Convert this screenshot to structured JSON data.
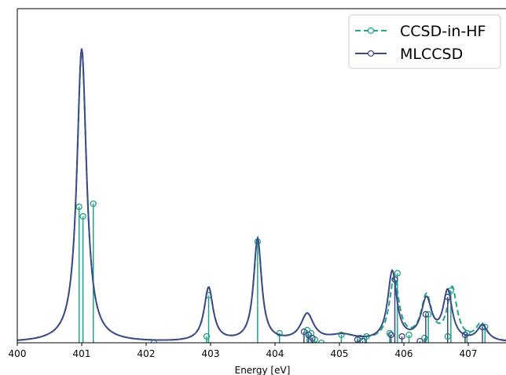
{
  "chart_data": {
    "type": "line",
    "title": "",
    "xlabel": "Energy [eV]",
    "ylabel": "",
    "xlim": [
      400,
      407.5
    ],
    "ylim": [
      0,
      1.0
    ],
    "xticks": [
      "400",
      "401",
      "402",
      "403",
      "404",
      "405",
      "406",
      "407"
    ],
    "grid": false,
    "legend_position": "top-right",
    "series": [
      {
        "name": "CCSD-in-HF",
        "color": "#21a585",
        "linestyle": "dashed",
        "marker": "open-circle",
        "peaks": [
          {
            "x": 401.0,
            "h": 0.93,
            "w": 0.09
          },
          {
            "x": 402.97,
            "h": 0.17,
            "w": 0.085
          },
          {
            "x": 403.73,
            "h": 0.325,
            "w": 0.075
          },
          {
            "x": 404.5,
            "h": 0.085,
            "w": 0.12
          },
          {
            "x": 405.05,
            "h": 0.02,
            "w": 0.25
          },
          {
            "x": 405.85,
            "h": 0.2,
            "w": 0.09
          },
          {
            "x": 406.35,
            "h": 0.14,
            "w": 0.1
          },
          {
            "x": 406.75,
            "h": 0.165,
            "w": 0.09
          },
          {
            "x": 407.2,
            "h": 0.055,
            "w": 0.1
          }
        ],
        "sticks": [
          {
            "x": 400.96,
            "y": 0.43
          },
          {
            "x": 401.02,
            "y": 0.4
          },
          {
            "x": 401.18,
            "y": 0.44
          },
          {
            "x": 402.12,
            "y": 0.0
          },
          {
            "x": 402.94,
            "y": 0.02
          },
          {
            "x": 402.97,
            "y": 0.15
          },
          {
            "x": 403.73,
            "y": 0.32
          },
          {
            "x": 404.07,
            "y": 0.03
          },
          {
            "x": 404.5,
            "y": 0.04
          },
          {
            "x": 404.56,
            "y": 0.03
          },
          {
            "x": 404.62,
            "y": 0.01
          },
          {
            "x": 404.72,
            "y": 0.0
          },
          {
            "x": 405.03,
            "y": 0.025
          },
          {
            "x": 405.32,
            "y": 0.015
          },
          {
            "x": 405.42,
            "y": 0.02
          },
          {
            "x": 405.78,
            "y": 0.03
          },
          {
            "x": 405.9,
            "y": 0.22
          },
          {
            "x": 406.08,
            "y": 0.025
          },
          {
            "x": 406.32,
            "y": 0.015
          },
          {
            "x": 406.38,
            "y": 0.09
          },
          {
            "x": 406.68,
            "y": 0.02
          },
          {
            "x": 406.73,
            "y": 0.165
          },
          {
            "x": 406.98,
            "y": 0.03
          },
          {
            "x": 407.26,
            "y": 0.05
          }
        ]
      },
      {
        "name": "MLCCSD",
        "color": "#3e4989",
        "linestyle": "solid",
        "marker": "open-circle",
        "peaks": [
          {
            "x": 401.0,
            "h": 0.93,
            "w": 0.09
          },
          {
            "x": 402.97,
            "h": 0.17,
            "w": 0.085
          },
          {
            "x": 403.73,
            "h": 0.325,
            "w": 0.075
          },
          {
            "x": 404.5,
            "h": 0.085,
            "w": 0.12
          },
          {
            "x": 405.05,
            "h": 0.02,
            "w": 0.25
          },
          {
            "x": 405.82,
            "h": 0.22,
            "w": 0.085
          },
          {
            "x": 406.35,
            "h": 0.13,
            "w": 0.1
          },
          {
            "x": 406.68,
            "h": 0.155,
            "w": 0.085
          },
          {
            "x": 407.22,
            "h": 0.05,
            "w": 0.1
          }
        ],
        "sticks": [
          {
            "x": 404.45,
            "y": 0.035
          },
          {
            "x": 404.52,
            "y": 0.025
          },
          {
            "x": 404.58,
            "y": 0.015
          },
          {
            "x": 405.28,
            "y": 0.01
          },
          {
            "x": 405.36,
            "y": 0.005
          },
          {
            "x": 405.8,
            "y": 0.025
          },
          {
            "x": 405.86,
            "y": 0.2
          },
          {
            "x": 405.97,
            "y": 0.02
          },
          {
            "x": 406.25,
            "y": 0.005
          },
          {
            "x": 406.34,
            "y": 0.09
          },
          {
            "x": 406.68,
            "y": 0.145
          },
          {
            "x": 406.95,
            "y": 0.025
          },
          {
            "x": 407.22,
            "y": 0.05
          }
        ]
      }
    ]
  }
}
